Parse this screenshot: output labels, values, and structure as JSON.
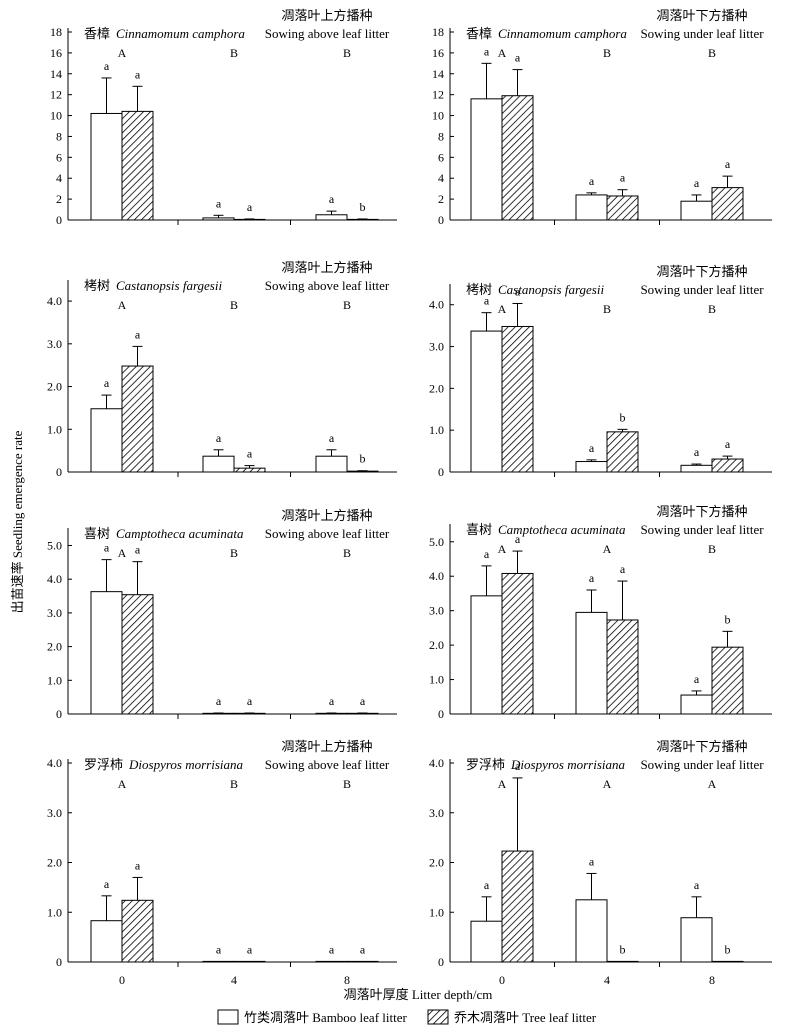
{
  "figure": {
    "y_axis_label": "出苗速率 Seedling emergence rate",
    "x_axis_label": "凋落叶厚度 Litter depth/cm",
    "legend": [
      {
        "label": "竹类凋落叶 Bamboo leaf litter",
        "pattern": "open"
      },
      {
        "label": "乔木凋落叶 Tree leaf litter",
        "pattern": "hatched"
      }
    ],
    "colors": {
      "axis": "#000000",
      "fill_open": "#ffffff",
      "hatch": "#000000"
    }
  },
  "chart_data": [
    {
      "type": "bar",
      "title": "香樟 Cinnamomum camphora",
      "species_cn": "香樟",
      "species_latin": "Cinnamomum camphora",
      "treatment_cn": "凋落叶上方播种",
      "treatment_en": "Sowing above leaf litter",
      "categories": [
        "0",
        "4",
        "8"
      ],
      "ylim": [
        0,
        18
      ],
      "yticks": [
        "0",
        "2",
        "4",
        "6",
        "8",
        "10",
        "12",
        "14",
        "16",
        "18"
      ],
      "series": [
        {
          "name": "竹类凋落叶 Bamboo leaf litter",
          "values": [
            10.2,
            0.2,
            0.5
          ],
          "errors": [
            3.4,
            0.25,
            0.35
          ]
        },
        {
          "name": "乔木凋落叶 Tree leaf litter",
          "values": [
            10.4,
            0.05,
            0.05
          ],
          "errors": [
            2.4,
            0.05,
            0.05
          ]
        }
      ],
      "bar_letters": [
        [
          "a",
          "a",
          "a"
        ],
        [
          "a",
          "a",
          "b"
        ]
      ],
      "group_letters": [
        "A",
        "B",
        "B"
      ]
    },
    {
      "type": "bar",
      "title": "香樟 Cinnamomum camphora",
      "species_cn": "香樟",
      "species_latin": "Cinnamomum camphora",
      "treatment_cn": "凋落叶下方播种",
      "treatment_en": "Sowing under leaf litter",
      "categories": [
        "0",
        "4",
        "8"
      ],
      "ylim": [
        0,
        18
      ],
      "yticks": [
        "0",
        "2",
        "4",
        "6",
        "8",
        "10",
        "12",
        "14",
        "16",
        "18"
      ],
      "series": [
        {
          "name": "竹类凋落叶 Bamboo leaf litter",
          "values": [
            11.6,
            2.4,
            1.8
          ],
          "errors": [
            3.4,
            0.2,
            0.6
          ]
        },
        {
          "name": "乔木凋落叶 Tree leaf litter",
          "values": [
            11.9,
            2.3,
            3.1
          ],
          "errors": [
            2.5,
            0.6,
            1.1
          ]
        }
      ],
      "bar_letters": [
        [
          "a",
          "a",
          "a"
        ],
        [
          "a",
          "a",
          "a"
        ]
      ],
      "group_letters": [
        "A",
        "B",
        "B"
      ]
    },
    {
      "type": "bar",
      "title": "栲树 Castanopsis fargesii",
      "species_cn": "栲树",
      "species_latin": "Castanopsis fargesii",
      "treatment_cn": "凋落叶上方播种",
      "treatment_en": "Sowing above leaf litter",
      "categories": [
        "0",
        "4",
        "8"
      ],
      "ylim": [
        0,
        4.4
      ],
      "yticks": [
        "0",
        "1.0",
        "2.0",
        "3.0",
        "4.0"
      ],
      "series": [
        {
          "name": "竹类凋落叶 Bamboo leaf litter",
          "values": [
            1.48,
            0.37,
            0.37
          ],
          "errors": [
            0.32,
            0.15,
            0.15
          ]
        },
        {
          "name": "乔木凋落叶 Tree leaf litter",
          "values": [
            2.48,
            0.09,
            0.02
          ],
          "errors": [
            0.46,
            0.06,
            0.01
          ]
        }
      ],
      "bar_letters": [
        [
          "a",
          "a",
          "a"
        ],
        [
          "a",
          "a",
          "b"
        ]
      ],
      "group_letters": [
        "A",
        "B",
        "B"
      ]
    },
    {
      "type": "bar",
      "title": "栲树 Castanopsis fargesii",
      "species_cn": "栲树",
      "species_latin": "Castanopsis fargesii",
      "treatment_cn": "凋落叶下方播种",
      "treatment_en": "Sowing under leaf litter",
      "categories": [
        "0",
        "4",
        "8"
      ],
      "ylim": [
        0,
        4.4
      ],
      "yticks": [
        "0",
        "1.0",
        "2.0",
        "3.0",
        "4.0"
      ],
      "series": [
        {
          "name": "竹类凋落叶 Bamboo leaf litter",
          "values": [
            3.37,
            0.25,
            0.16
          ],
          "errors": [
            0.44,
            0.04,
            0.03
          ]
        },
        {
          "name": "乔木凋落叶 Tree leaf litter",
          "values": [
            3.48,
            0.96,
            0.31
          ],
          "errors": [
            0.55,
            0.06,
            0.07
          ]
        }
      ],
      "bar_letters": [
        [
          "a",
          "a",
          "a"
        ],
        [
          "a",
          "b",
          "a"
        ]
      ],
      "group_letters": [
        "A",
        "B",
        "B"
      ]
    },
    {
      "type": "bar",
      "title": "喜树 Camptotheca acuminata",
      "species_cn": "喜树",
      "species_latin": "Camptotheca acuminata",
      "treatment_cn": "凋落叶上方播种",
      "treatment_en": "Sowing above leaf litter",
      "categories": [
        "0",
        "4",
        "8"
      ],
      "ylim": [
        0,
        5.4
      ],
      "yticks": [
        "0",
        "1.0",
        "2.0",
        "3.0",
        "4.0",
        "5.0"
      ],
      "series": [
        {
          "name": "竹类凋落叶 Bamboo leaf litter",
          "values": [
            3.63,
            0.02,
            0.02
          ],
          "errors": [
            0.95,
            0.01,
            0.01
          ]
        },
        {
          "name": "乔木凋落叶 Tree leaf litter",
          "values": [
            3.54,
            0.02,
            0.02
          ],
          "errors": [
            0.98,
            0.01,
            0.01
          ]
        }
      ],
      "bar_letters": [
        [
          "a",
          "a",
          "a"
        ],
        [
          "a",
          "a",
          "a"
        ]
      ],
      "group_letters": [
        "A",
        "B",
        "B"
      ]
    },
    {
      "type": "bar",
      "title": "喜树 Camptotheca acuminata",
      "species_cn": "喜树",
      "species_latin": "Camptotheca acuminata",
      "treatment_cn": "凋落叶下方播种",
      "treatment_en": "Sowing under leaf litter",
      "categories": [
        "0",
        "4",
        "8"
      ],
      "ylim": [
        0,
        5.4
      ],
      "yticks": [
        "0",
        "1.0",
        "2.0",
        "3.0",
        "4.0",
        "5.0"
      ],
      "series": [
        {
          "name": "竹类凋落叶 Bamboo leaf litter",
          "values": [
            3.43,
            2.95,
            0.55
          ],
          "errors": [
            0.87,
            0.65,
            0.12
          ]
        },
        {
          "name": "乔木凋落叶 Tree leaf litter",
          "values": [
            4.08,
            2.73,
            1.94
          ],
          "errors": [
            0.65,
            1.13,
            0.46
          ]
        }
      ],
      "bar_letters": [
        [
          "a",
          "a",
          "a"
        ],
        [
          "a",
          "a",
          "b"
        ]
      ],
      "group_letters": [
        "A",
        "A",
        "B"
      ]
    },
    {
      "type": "bar",
      "title": "罗浮柿 Diospyros morrisiana",
      "species_cn": "罗浮柿",
      "species_latin": "Diospyros morrisiana",
      "treatment_cn": "凋落叶上方播种",
      "treatment_en": "Sowing above leaf litter",
      "categories": [
        "0",
        "4",
        "8"
      ],
      "ylim": [
        0,
        4.0
      ],
      "yticks": [
        "0",
        "1.0",
        "2.0",
        "3.0",
        "4.0"
      ],
      "series": [
        {
          "name": "竹类凋落叶 Bamboo leaf litter",
          "values": [
            0.83,
            0.01,
            0.01
          ],
          "errors": [
            0.5,
            0.0,
            0.0
          ]
        },
        {
          "name": "乔木凋落叶 Tree leaf litter",
          "values": [
            1.24,
            0.01,
            0.01
          ],
          "errors": [
            0.46,
            0.0,
            0.0
          ]
        }
      ],
      "bar_letters": [
        [
          "a",
          "a",
          "a"
        ],
        [
          "a",
          "a",
          "a"
        ]
      ],
      "group_letters": [
        "A",
        "B",
        "B"
      ]
    },
    {
      "type": "bar",
      "title": "罗浮柿 Diospyros morrisiana",
      "species_cn": "罗浮柿",
      "species_latin": "Diospyros morrisiana",
      "treatment_cn": "凋落叶下方播种",
      "treatment_en": "Sowing under leaf litter",
      "categories": [
        "0",
        "4",
        "8"
      ],
      "ylim": [
        0,
        4.0
      ],
      "yticks": [
        "0",
        "1.0",
        "2.0",
        "3.0",
        "4.0"
      ],
      "series": [
        {
          "name": "竹类凋落叶 Bamboo leaf litter",
          "values": [
            0.82,
            1.25,
            0.89
          ],
          "errors": [
            0.49,
            0.53,
            0.42
          ]
        },
        {
          "name": "乔木凋落叶 Tree leaf litter",
          "values": [
            2.23,
            0.01,
            0.01
          ],
          "errors": [
            1.47,
            0.0,
            0.0
          ]
        }
      ],
      "bar_letters": [
        [
          "a",
          "a",
          "a"
        ],
        [
          "a",
          "b",
          "b"
        ]
      ],
      "group_letters": [
        "A",
        "A",
        "A"
      ]
    }
  ]
}
